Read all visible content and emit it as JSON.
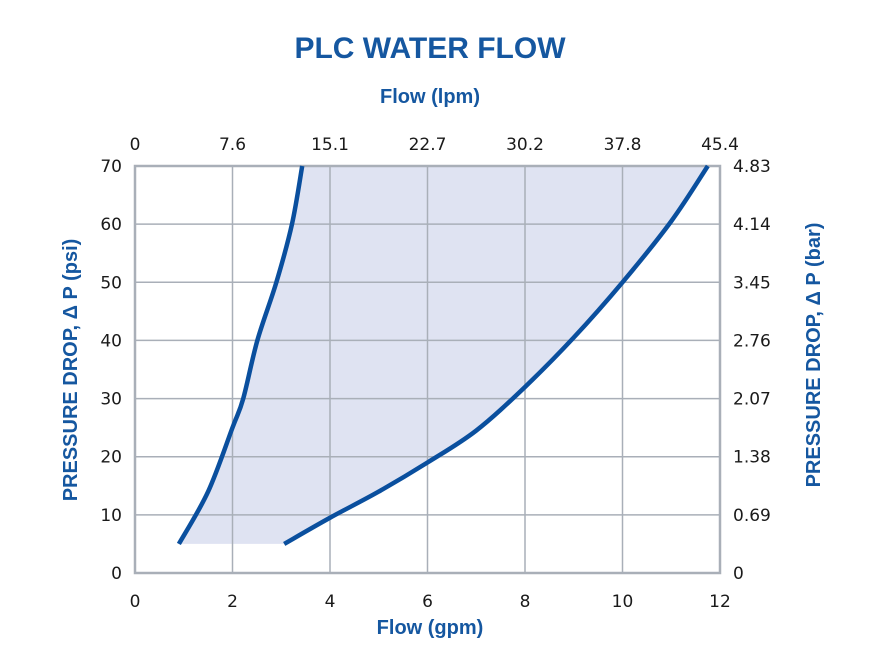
{
  "chart_data": {
    "type": "area",
    "title": "PLC WATER FLOW",
    "x_top_label": "Flow (lpm)",
    "xlabel": "Flow (gpm)",
    "ylabel": "PRESSURE DROP, Δ P (psi)",
    "y_right_label": "PRESSURE DROP, Δ P (bar)",
    "xlim": [
      0,
      12
    ],
    "ylim": [
      0,
      70
    ],
    "x_ticks": [
      "0",
      "2",
      "4",
      "6",
      "8",
      "10",
      "12"
    ],
    "x_top_ticks": [
      "0",
      "7.6",
      "15.1",
      "22.7",
      "30.2",
      "37.8",
      "45.4"
    ],
    "y_ticks": [
      "0",
      "10",
      "20",
      "30",
      "40",
      "50",
      "60",
      "70"
    ],
    "y_right_ticks": [
      "0",
      "0.69",
      "1.38",
      "2.07",
      "2.76",
      "3.45",
      "4.14",
      "4.83"
    ],
    "grid": true,
    "colors": {
      "line": "#0a4f9e",
      "fill": "#dfe3f2",
      "grid": "#a9afb8",
      "text": "#1557a0"
    },
    "series": [
      {
        "x": [
          0.9,
          1.5,
          2.0,
          2.22,
          2.51,
          2.9,
          3.22,
          3.43
        ],
        "y": [
          5,
          14,
          25,
          30,
          40,
          50,
          60,
          70
        ]
      },
      {
        "x": [
          3.06,
          4.0,
          5.0,
          6.0,
          7.0,
          8.0,
          9.0,
          10.0,
          11.0,
          11.75
        ],
        "y": [
          5,
          9.5,
          14,
          19,
          24.5,
          32,
          40.5,
          50,
          60.5,
          70
        ]
      }
    ],
    "band_floor": 5
  }
}
